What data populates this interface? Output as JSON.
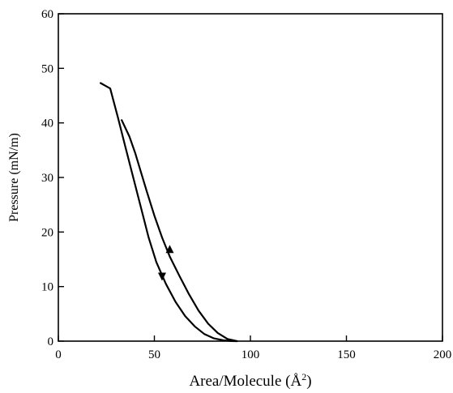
{
  "chart_data": {
    "type": "line",
    "title": "",
    "xlabel": "Area/Molecule (Å",
    "xlabel_sup": "2",
    "xlabel_close": ")",
    "ylabel": "Pressure (mN/m)",
    "xlim": [
      0,
      200
    ],
    "ylim": [
      0,
      60
    ],
    "xticks": [
      0,
      50,
      100,
      150,
      200
    ],
    "yticks": [
      0,
      10,
      20,
      30,
      40,
      50,
      60
    ],
    "grid": false,
    "legend": "none",
    "series": [
      {
        "x": [
          22,
          27,
          31,
          35,
          39,
          43,
          47,
          51,
          56,
          61,
          66,
          71,
          76,
          81,
          86,
          90,
          93
        ],
        "y": [
          47.3,
          46.3,
          41.0,
          35.5,
          30.0,
          24.5,
          19.0,
          14.5,
          10.5,
          7.2,
          4.6,
          2.7,
          1.3,
          0.5,
          0.15,
          0.02,
          0
        ],
        "direction": "compression"
      },
      {
        "x": [
          93,
          88,
          83,
          78,
          73,
          68,
          63,
          58,
          54,
          50,
          46,
          43,
          40,
          37,
          33
        ],
        "y": [
          0,
          0.4,
          1.5,
          3.2,
          5.6,
          8.6,
          12.0,
          15.5,
          19.0,
          23.0,
          27.5,
          31.0,
          34.5,
          37.5,
          40.5
        ],
        "direction": "expansion"
      }
    ],
    "annotations": [
      {
        "type": "arrow",
        "at_x": 58,
        "at_y": 16.3,
        "direction": "up"
      },
      {
        "type": "arrow",
        "at_x": 54,
        "at_y": 12.4,
        "direction": "down"
      }
    ]
  }
}
